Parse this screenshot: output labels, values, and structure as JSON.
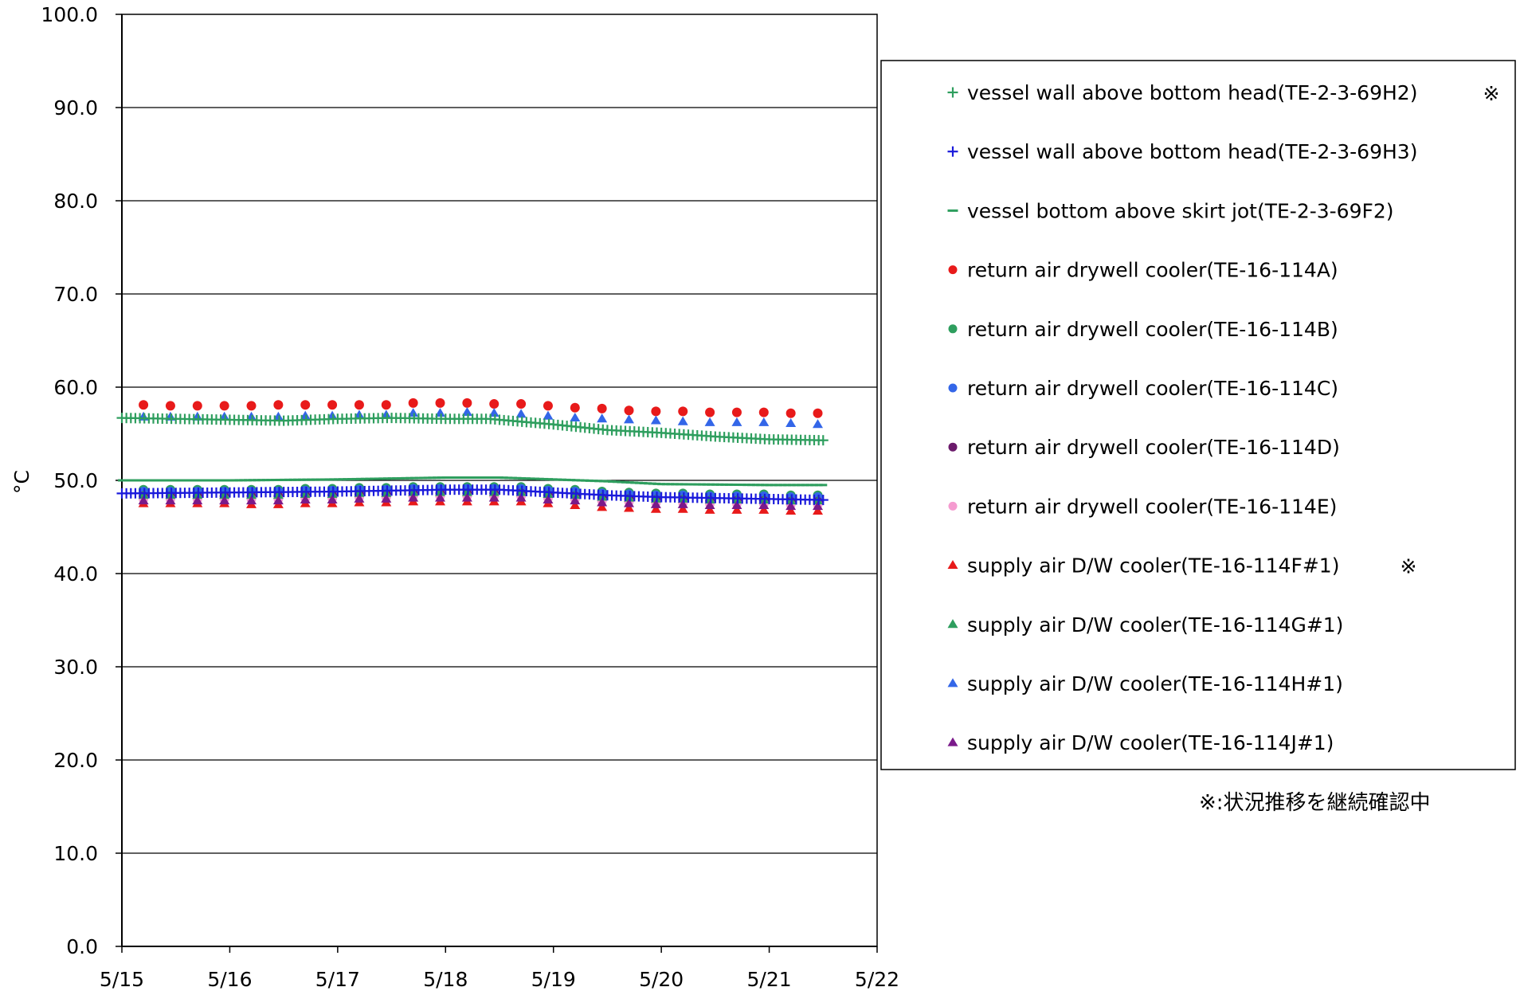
{
  "chart_data": {
    "type": "scatter",
    "ylabel": "°C",
    "xlabel": "",
    "ylim": [
      0,
      100
    ],
    "xlim": [
      "5/15",
      "5/22"
    ],
    "y_ticks": [
      "0.0",
      "10.0",
      "20.0",
      "30.0",
      "40.0",
      "50.0",
      "60.0",
      "70.0",
      "80.0",
      "90.0",
      "100.0"
    ],
    "x_ticks": [
      "5/15",
      "5/16",
      "5/17",
      "5/18",
      "5/19",
      "5/20",
      "5/21",
      "5/22"
    ],
    "grid": "horizontal",
    "legend_position": "right",
    "note": "※:状況推移を継続確認中",
    "series": [
      {
        "name": "vessel wall above bottom head(TE-2-3-69H2)",
        "flag": "※",
        "marker": "plus",
        "color": "#2e9e5e",
        "dense": true,
        "x": [
          0.0,
          0.5,
          1.0,
          1.5,
          2.0,
          2.5,
          3.0,
          3.4,
          3.7,
          4.0,
          4.5,
          5.0,
          5.5,
          6.0,
          6.5
        ],
        "y": [
          56.7,
          56.6,
          56.5,
          56.4,
          56.6,
          56.7,
          56.6,
          56.6,
          56.3,
          56.0,
          55.4,
          55.1,
          54.7,
          54.4,
          54.3
        ]
      },
      {
        "name": "vessel wall above bottom head(TE-2-3-69H3)",
        "flag": "",
        "marker": "plus",
        "color": "#1a1adb",
        "dense": true,
        "x": [
          0.0,
          1.0,
          2.0,
          3.0,
          3.5,
          4.0,
          4.5,
          5.0,
          6.0,
          6.5
        ],
        "y": [
          48.6,
          48.7,
          48.8,
          49.0,
          49.0,
          48.7,
          48.4,
          48.2,
          48.0,
          47.9
        ]
      },
      {
        "name": "vessel bottom above skirt jot(TE-2-3-69F2)",
        "flag": "",
        "marker": "dash",
        "color": "#2e9e5e",
        "dense": true,
        "x": [
          0.0,
          1.0,
          2.0,
          3.0,
          3.5,
          4.0,
          4.5,
          5.0,
          6.0,
          6.5
        ],
        "y": [
          50.0,
          50.0,
          50.1,
          50.3,
          50.3,
          50.1,
          49.9,
          49.6,
          49.5,
          49.5
        ]
      },
      {
        "name": "return air drywell cooler(TE-16-114A)",
        "flag": "",
        "marker": "circle",
        "color": "#e81a1a",
        "dense": false,
        "x": [
          0.2,
          0.45,
          0.7,
          0.95,
          1.2,
          1.45,
          1.7,
          1.95,
          2.2,
          2.45,
          2.7,
          2.95,
          3.2,
          3.45,
          3.7,
          3.95,
          4.2,
          4.45,
          4.7,
          4.95,
          5.2,
          5.45,
          5.7,
          5.95,
          6.2,
          6.45
        ],
        "y": [
          58.1,
          58.0,
          58.0,
          58.0,
          58.0,
          58.1,
          58.1,
          58.1,
          58.1,
          58.1,
          58.3,
          58.3,
          58.3,
          58.2,
          58.2,
          58.0,
          57.8,
          57.7,
          57.5,
          57.4,
          57.4,
          57.3,
          57.3,
          57.3,
          57.2,
          57.2
        ]
      },
      {
        "name": "return air drywell cooler(TE-16-114B)",
        "flag": "",
        "marker": "circle",
        "color": "#2e9e5e",
        "dense": false,
        "x": [
          0.2,
          0.45,
          0.7,
          0.95,
          1.2,
          1.45,
          1.7,
          1.95,
          2.2,
          2.45,
          2.7,
          2.95,
          3.2,
          3.45,
          3.7,
          3.95,
          4.2,
          4.45,
          4.7,
          4.95,
          5.2,
          5.45,
          5.7,
          5.95,
          6.2,
          6.45
        ],
        "y": [
          49.0,
          49.0,
          49.0,
          49.0,
          49.0,
          49.0,
          49.1,
          49.1,
          49.2,
          49.2,
          49.3,
          49.3,
          49.3,
          49.3,
          49.3,
          49.1,
          49.0,
          48.8,
          48.7,
          48.6,
          48.6,
          48.5,
          48.5,
          48.5,
          48.4,
          48.4
        ]
      },
      {
        "name": "return air drywell cooler(TE-16-114C)",
        "flag": "",
        "marker": "circle",
        "color": "#3366e8",
        "dense": false,
        "x": [
          0.2,
          0.45,
          0.7,
          0.95,
          1.2,
          1.45,
          1.7,
          1.95,
          2.2,
          2.45,
          2.7,
          2.95,
          3.2,
          3.45,
          3.7,
          3.95,
          4.2,
          4.45,
          4.7,
          4.95,
          5.2,
          5.45,
          5.7,
          5.95,
          6.2,
          6.45
        ],
        "y": [
          48.8,
          48.8,
          48.8,
          48.8,
          48.8,
          48.8,
          48.9,
          48.9,
          49.0,
          49.0,
          49.1,
          49.1,
          49.1,
          49.1,
          49.1,
          48.9,
          48.8,
          48.6,
          48.5,
          48.4,
          48.4,
          48.3,
          48.3,
          48.3,
          48.2,
          48.2
        ]
      },
      {
        "name": "return air drywell cooler(TE-16-114D)",
        "flag": "",
        "marker": "circle",
        "color": "#6b1a6b",
        "dense": false,
        "x": [
          0.2,
          0.45,
          0.7,
          0.95,
          1.2,
          1.45,
          1.7,
          1.95,
          2.2,
          2.45,
          2.7,
          2.95,
          3.2,
          3.45,
          3.7,
          3.95,
          4.2,
          4.45,
          4.7,
          4.95,
          5.2,
          5.45,
          5.7,
          5.95,
          6.2,
          6.45
        ],
        "y": [
          48.3,
          48.3,
          48.3,
          48.3,
          48.3,
          48.3,
          48.4,
          48.4,
          48.5,
          48.5,
          48.6,
          48.6,
          48.6,
          48.6,
          48.6,
          48.4,
          48.3,
          48.1,
          48.0,
          47.9,
          47.9,
          47.8,
          47.8,
          47.8,
          47.7,
          47.7
        ]
      },
      {
        "name": "return air drywell cooler(TE-16-114E)",
        "flag": "",
        "marker": "circle",
        "color": "#f59bd0",
        "dense": false,
        "x": [
          0.2,
          0.45,
          0.7,
          0.95,
          1.2,
          1.45,
          1.7,
          1.95,
          2.2,
          2.45,
          2.7,
          2.95,
          3.2,
          3.45,
          3.7,
          3.95,
          4.2,
          4.45,
          4.7,
          4.95,
          5.2,
          5.45,
          5.7,
          5.95,
          6.2,
          6.45
        ],
        "y": [
          48.0,
          48.0,
          48.0,
          48.0,
          48.0,
          48.0,
          48.1,
          48.1,
          48.2,
          48.2,
          48.3,
          48.3,
          48.3,
          48.3,
          48.3,
          48.1,
          48.0,
          47.8,
          47.7,
          47.6,
          47.6,
          47.5,
          47.5,
          47.5,
          47.4,
          47.4
        ]
      },
      {
        "name": "supply air D/W cooler(TE-16-114F#1)",
        "flag": "※",
        "marker": "triangle",
        "color": "#e81a1a",
        "dense": false,
        "x": [
          0.2,
          0.45,
          0.7,
          0.95,
          1.2,
          1.45,
          1.7,
          1.95,
          2.2,
          2.45,
          2.7,
          2.95,
          3.2,
          3.45,
          3.7,
          3.95,
          4.2,
          4.45,
          4.7,
          4.95,
          5.2,
          5.45,
          5.7,
          5.95,
          6.2,
          6.45
        ],
        "y": [
          47.5,
          47.5,
          47.5,
          47.5,
          47.4,
          47.4,
          47.5,
          47.5,
          47.6,
          47.6,
          47.7,
          47.7,
          47.7,
          47.7,
          47.7,
          47.5,
          47.3,
          47.1,
          47.0,
          46.9,
          46.9,
          46.8,
          46.8,
          46.8,
          46.7,
          46.7
        ]
      },
      {
        "name": "supply air D/W cooler(TE-16-114G#1)",
        "flag": "",
        "marker": "triangle",
        "color": "#2e9e5e",
        "dense": false,
        "x": [
          0.2,
          0.45,
          0.7,
          0.95,
          1.2,
          1.45,
          1.7,
          1.95,
          2.2,
          2.45,
          2.7,
          2.95,
          3.2,
          3.45,
          3.7,
          3.95,
          4.2,
          4.45,
          4.7,
          4.95,
          5.2,
          5.45,
          5.7,
          5.95,
          6.2,
          6.45
        ],
        "y": [
          48.4,
          48.4,
          48.4,
          48.4,
          48.4,
          48.4,
          48.5,
          48.5,
          48.6,
          48.6,
          48.7,
          48.7,
          48.7,
          48.7,
          48.7,
          48.5,
          48.4,
          48.2,
          48.1,
          48.0,
          48.0,
          47.9,
          47.9,
          47.9,
          47.8,
          47.8
        ]
      },
      {
        "name": "supply air D/W cooler(TE-16-114H#1)",
        "flag": "",
        "marker": "triangle",
        "color": "#3366e8",
        "dense": false,
        "x": [
          0.2,
          0.45,
          0.7,
          0.95,
          1.2,
          1.45,
          1.7,
          1.95,
          2.2,
          2.45,
          2.7,
          2.95,
          3.2,
          3.45,
          3.7,
          3.95,
          4.2,
          4.45,
          4.7,
          4.95,
          5.2,
          5.45,
          5.7,
          5.95,
          6.2,
          6.45
        ],
        "y": [
          56.8,
          56.8,
          56.8,
          56.8,
          56.8,
          56.8,
          56.9,
          56.9,
          57.0,
          57.0,
          57.2,
          57.2,
          57.3,
          57.2,
          57.1,
          56.9,
          56.7,
          56.6,
          56.5,
          56.4,
          56.3,
          56.2,
          56.2,
          56.2,
          56.1,
          56.0
        ]
      },
      {
        "name": "supply air D/W cooler(TE-16-114J#1)",
        "flag": "",
        "marker": "triangle",
        "color": "#7a1a8a",
        "dense": false,
        "x": [
          0.2,
          0.45,
          0.7,
          0.95,
          1.2,
          1.45,
          1.7,
          1.95,
          2.2,
          2.45,
          2.7,
          2.95,
          3.2,
          3.45,
          3.7,
          3.95,
          4.2,
          4.45,
          4.7,
          4.95,
          5.2,
          5.45,
          5.7,
          5.95,
          6.2,
          6.45
        ],
        "y": [
          47.8,
          47.8,
          47.8,
          47.8,
          47.8,
          47.8,
          47.9,
          47.9,
          48.0,
          48.0,
          48.1,
          48.1,
          48.1,
          48.1,
          48.1,
          47.9,
          47.8,
          47.6,
          47.5,
          47.4,
          47.4,
          47.3,
          47.3,
          47.3,
          47.2,
          47.2
        ]
      }
    ]
  }
}
